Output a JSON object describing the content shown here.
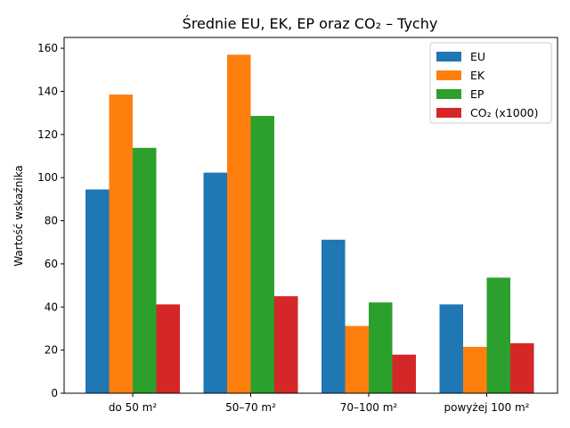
{
  "chart_data": {
    "type": "bar",
    "title": "Średnie EU, EK, EP oraz CO₂ – Tychy",
    "xlabel": "",
    "ylabel": "Wartość wskaźnika",
    "categories": [
      "do 50 m²",
      "50–70 m²",
      "70–100 m²",
      "powyżej 100 m²"
    ],
    "series": [
      {
        "name": "EU",
        "color": "#1f77b4",
        "values": [
          94.5,
          102.3,
          71.2,
          41.2
        ]
      },
      {
        "name": "EK",
        "color": "#ff7f0e",
        "values": [
          138.5,
          157.0,
          31.2,
          21.5
        ]
      },
      {
        "name": "EP",
        "color": "#2ca02c",
        "values": [
          113.8,
          128.6,
          42.1,
          53.6
        ]
      },
      {
        "name": "CO₂ (x1000)",
        "color": "#d62728",
        "values": [
          41.2,
          45.0,
          17.9,
          23.2
        ]
      }
    ],
    "ylim": [
      0,
      165
    ],
    "yticks": [
      0,
      20,
      40,
      60,
      80,
      100,
      120,
      140,
      160
    ],
    "grid": false,
    "legend": "top-right"
  }
}
